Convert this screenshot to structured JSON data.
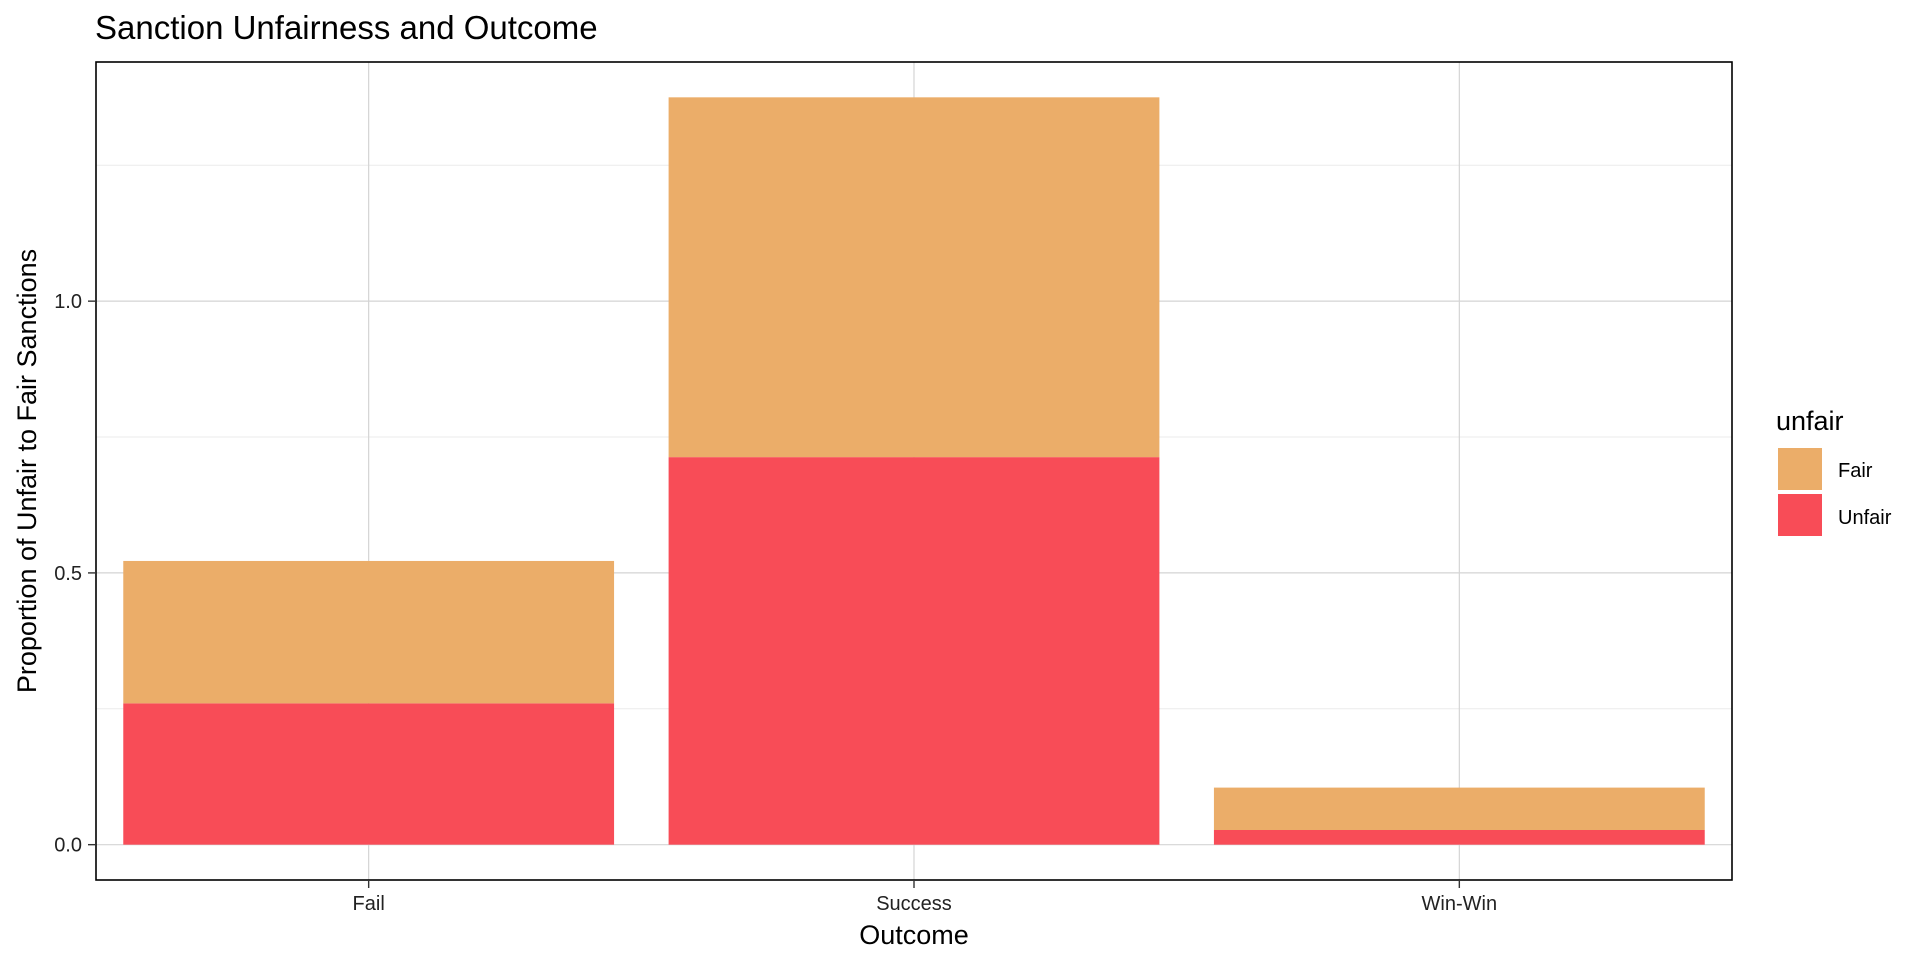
{
  "chart_data": {
    "type": "bar",
    "stacked": true,
    "title": "Sanction Unfairness and Outcome",
    "xlabel": "Outcome",
    "ylabel": "Proportion of Unfair to Fair Sanctions",
    "categories": [
      "Fail",
      "Success",
      "Win-Win"
    ],
    "series": [
      {
        "name": "Unfair",
        "values": [
          0.26,
          0.713,
          0.027
        ],
        "color": "#f84c57"
      },
      {
        "name": "Fair",
        "values": [
          0.262,
          0.662,
          0.078
        ],
        "color": "#ebad69"
      }
    ],
    "ylim": [
      -0.065,
      1.44
    ],
    "yticks": [
      0.0,
      0.5,
      1.0
    ],
    "ytick_labels": [
      "0.0",
      "0.5",
      "1.0"
    ],
    "grid": true,
    "legend": {
      "title": "unfair",
      "placement": "right",
      "entries": [
        {
          "label": "Fair",
          "color": "#ebad69"
        },
        {
          "label": "Unfair",
          "color": "#f84c57"
        }
      ]
    }
  }
}
